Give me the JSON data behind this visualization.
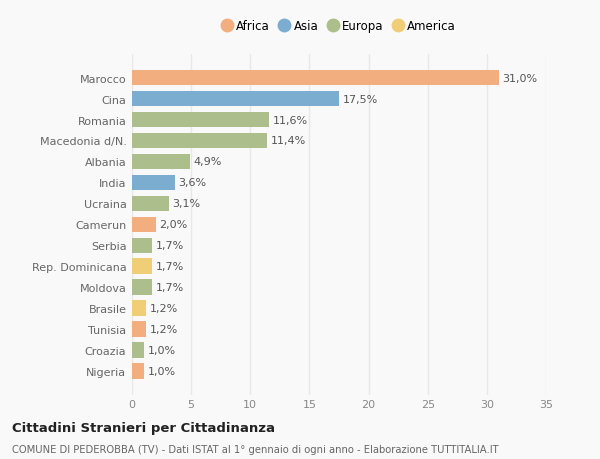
{
  "categories": [
    "Marocco",
    "Cina",
    "Romania",
    "Macedonia d/N.",
    "Albania",
    "India",
    "Ucraina",
    "Camerun",
    "Serbia",
    "Rep. Dominicana",
    "Moldova",
    "Brasile",
    "Tunisia",
    "Croazia",
    "Nigeria"
  ],
  "values": [
    31.0,
    17.5,
    11.6,
    11.4,
    4.9,
    3.6,
    3.1,
    2.0,
    1.7,
    1.7,
    1.7,
    1.2,
    1.2,
    1.0,
    1.0
  ],
  "labels": [
    "31,0%",
    "17,5%",
    "11,6%",
    "11,4%",
    "4,9%",
    "3,6%",
    "3,1%",
    "2,0%",
    "1,7%",
    "1,7%",
    "1,7%",
    "1,2%",
    "1,2%",
    "1,0%",
    "1,0%"
  ],
  "continents": [
    "Africa",
    "Asia",
    "Europa",
    "Europa",
    "Europa",
    "Asia",
    "Europa",
    "Africa",
    "Europa",
    "America",
    "Europa",
    "America",
    "Africa",
    "Europa",
    "Africa"
  ],
  "colors": {
    "Africa": "#F2AE7E",
    "Asia": "#7AADCF",
    "Europa": "#ABBE8C",
    "America": "#F0CE78"
  },
  "legend_order": [
    "Africa",
    "Asia",
    "Europa",
    "America"
  ],
  "title": "Cittadini Stranieri per Cittadinanza",
  "subtitle": "COMUNE DI PEDEROBBA (TV) - Dati ISTAT al 1° gennaio di ogni anno - Elaborazione TUTTITALIA.IT",
  "xlim": [
    0,
    35
  ],
  "xticks": [
    0,
    5,
    10,
    15,
    20,
    25,
    30,
    35
  ],
  "background_color": "#f9f9f9",
  "grid_color": "#e8e8e8",
  "bar_height": 0.75,
  "label_fontsize": 8,
  "ytick_fontsize": 8,
  "xtick_fontsize": 8
}
